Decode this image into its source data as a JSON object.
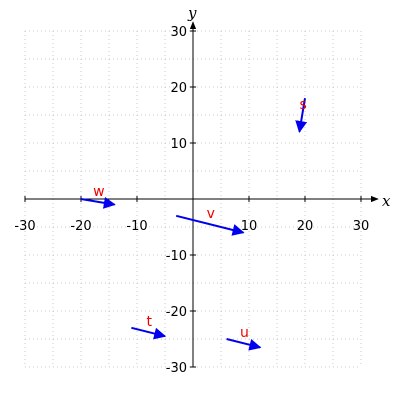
{
  "chart_data": {
    "type": "vector-plot",
    "title": "",
    "xlabel": "x",
    "ylabel": "y",
    "xlim": [
      -30,
      30
    ],
    "ylim": [
      -30,
      30
    ],
    "xticks": [
      -30,
      -20,
      -10,
      10,
      20,
      30
    ],
    "yticks": [
      -30,
      -20,
      -10,
      10,
      20,
      30
    ],
    "grid": true,
    "vector_color": "#0000ee",
    "label_color": "#ee0000",
    "vectors": [
      {
        "name": "s",
        "x0": 20,
        "y0": 18,
        "x1": 19,
        "y1": 12
      },
      {
        "name": "w",
        "x0": -20,
        "y0": 0,
        "x1": -14,
        "y1": -1
      },
      {
        "name": "v",
        "x0": -3,
        "y0": -3,
        "x1": 9,
        "y1": -6
      },
      {
        "name": "t",
        "x0": -11,
        "y0": -23,
        "x1": -5,
        "y1": -24.5
      },
      {
        "name": "u",
        "x0": 6,
        "y0": -25,
        "x1": 12,
        "y1": -26.5
      }
    ]
  }
}
